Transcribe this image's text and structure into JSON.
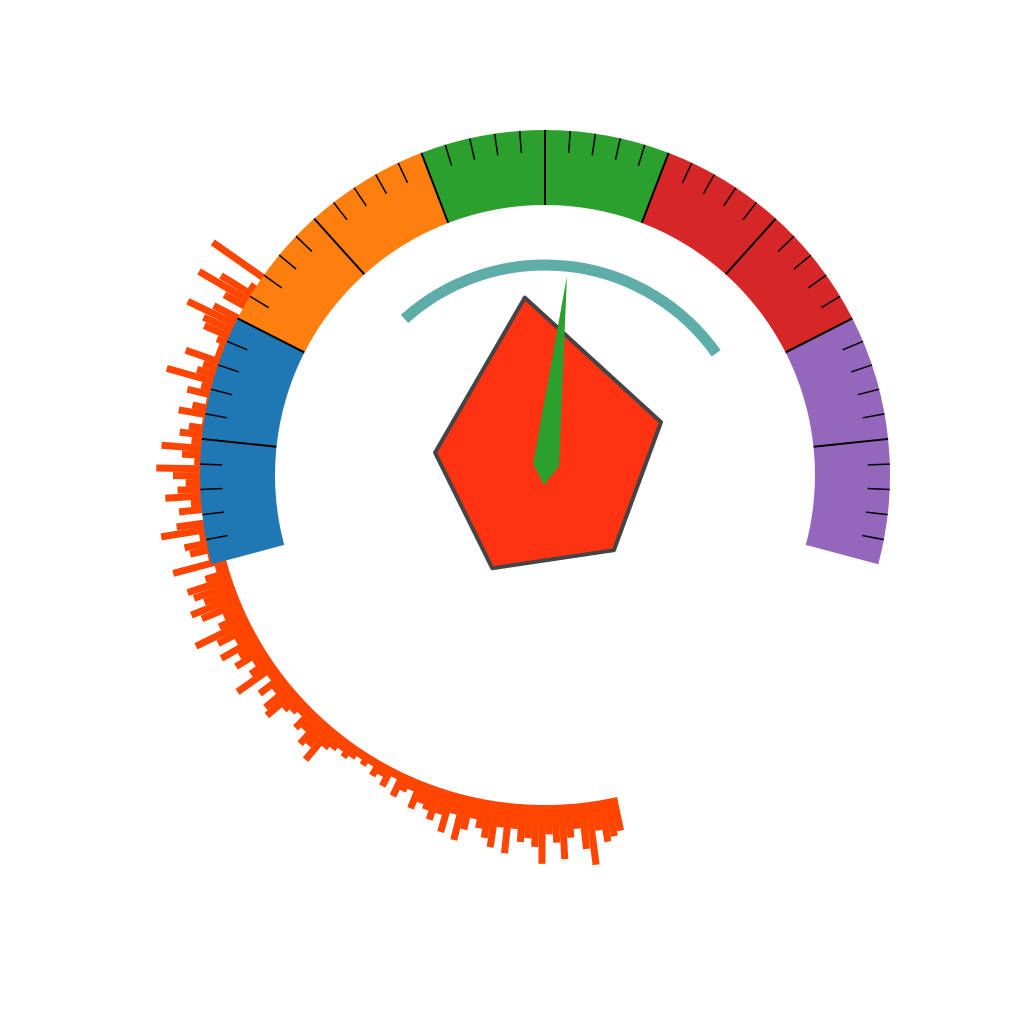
{
  "chart_data": {
    "type": "gauge",
    "title": "",
    "gauge": {
      "min": 0,
      "max": 100,
      "value": 53,
      "bands": [
        {
          "from": 0,
          "to": 20,
          "color": "#1f77b4"
        },
        {
          "from": 20,
          "to": 40,
          "color": "#ff7f0e"
        },
        {
          "from": 40,
          "to": 60,
          "color": "#2ca02c"
        },
        {
          "from": 60,
          "to": 80,
          "color": "#d62728"
        },
        {
          "from": 80,
          "to": 100,
          "color": "#9467bd"
        }
      ],
      "major_tick_step": 10,
      "minor_tick_step": 2,
      "needle_color": "#2ca02c",
      "indicator_arc_color": "#5fada8",
      "indicator_arc_range": [
        30,
        76
      ]
    },
    "radar_polygon": {
      "fill": "#ff3311",
      "stroke": "#444444",
      "values": [
        0.7,
        0.5,
        0.4,
        0.42,
        0.44
      ]
    },
    "radial_bars": {
      "color": "#ff4500",
      "baseline_r": 0.5,
      "values": [
        0.18,
        0.02,
        0.05,
        0.12,
        0.17,
        0.09,
        0.02,
        0.1,
        0.16,
        0.11,
        0.1,
        0.06,
        0.05,
        0.05,
        0.12,
        0.07,
        0.08,
        0.15,
        0.06,
        0.09,
        0.04,
        0.07,
        0.1,
        0.04,
        0.07,
        0.09,
        0.06,
        0.13,
        0.08,
        0.05,
        0.14,
        0.1,
        0.07,
        0.09,
        0.12,
        0.06,
        0.09,
        0.03,
        0.1,
        0.14,
        0.05,
        0.09,
        0.08,
        0.04,
        0.13,
        0.03,
        0.06,
        0.11,
        0.1,
        0.08,
        0.12,
        0.1,
        0.05,
        0.07,
        0.14,
        0.09,
        0.05,
        0.1,
        0.06,
        0.08,
        0.04,
        0.06,
        0.11,
        0.03,
        0.07,
        0.04,
        0.08,
        0.09,
        0.05,
        0.04,
        0.03,
        0.06,
        0.05,
        0.08,
        0.07,
        0.1,
        0.05,
        0.04,
        0.03,
        0.04,
        0.03,
        0.02,
        0.03,
        0.02,
        0.04,
        0.03,
        0.05,
        0.02,
        0.06,
        0.04,
        0.03,
        0.07,
        0.05,
        0.06,
        0.08,
        0.06,
        0.1,
        0.05,
        0.11,
        0.08,
        0.05,
        0.07,
        0.09,
        0.11,
        0.06,
        0.12,
        0.06,
        0.09,
        0.08,
        0.1,
        0.14,
        0.07,
        0.09,
        0.13,
        0.08,
        0.06,
        0.11,
        0.15,
        0.07,
        0.1,
        0.09,
        0.08
      ]
    }
  }
}
